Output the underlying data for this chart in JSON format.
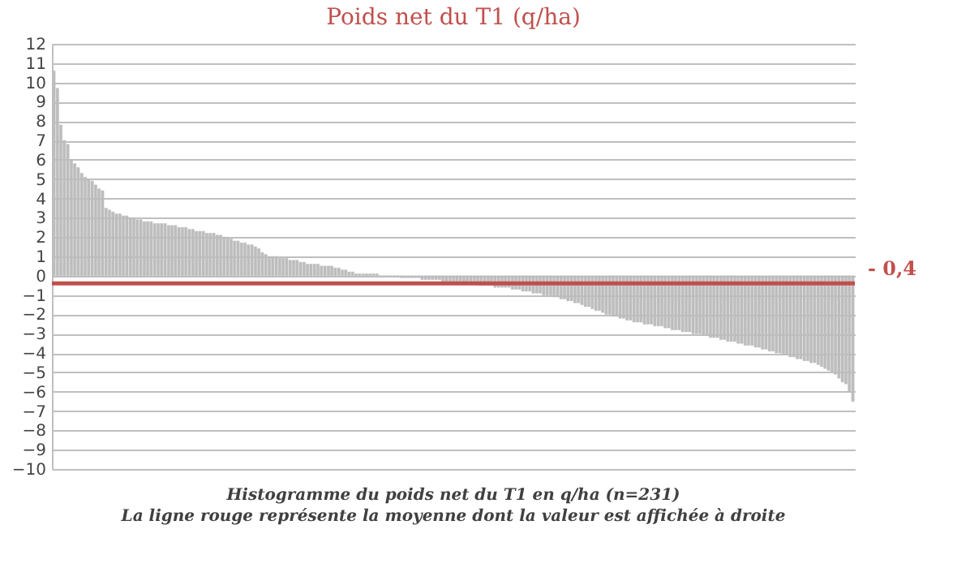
{
  "chart_data": {
    "type": "bar",
    "title": "Poids net du T1 (q/ha)",
    "categories": [
      null,
      null,
      null,
      null,
      null,
      null,
      null,
      null,
      null,
      null,
      null,
      null,
      null,
      null,
      null,
      null,
      null,
      null,
      null,
      null,
      null,
      null,
      null,
      null,
      null,
      null,
      null,
      null,
      null,
      null,
      null,
      null,
      null,
      null,
      null,
      null,
      null,
      null,
      null,
      null,
      null,
      null,
      null,
      null,
      null,
      null,
      null,
      null,
      null,
      null,
      null,
      null,
      null,
      null,
      null,
      null,
      null,
      null,
      null,
      null,
      null,
      null,
      null,
      null,
      null,
      null,
      null,
      null,
      null,
      null,
      null,
      null,
      null,
      null,
      null,
      null,
      null,
      null,
      null,
      null,
      null,
      null,
      null,
      null,
      null,
      null,
      null,
      null,
      null,
      null,
      null,
      null,
      null,
      null,
      null,
      null,
      null,
      null,
      null,
      null,
      null,
      null,
      null,
      null,
      null,
      null,
      null,
      null,
      null,
      null,
      null,
      null,
      null,
      null,
      null,
      null,
      null,
      null,
      null,
      null,
      null,
      null,
      null,
      null,
      null,
      null,
      null,
      null,
      null,
      null,
      null,
      null,
      null,
      null,
      null,
      null,
      null,
      null,
      null,
      null,
      null,
      null,
      null,
      null,
      null,
      null,
      null,
      null,
      null,
      null,
      null,
      null,
      null,
      null,
      null,
      null,
      null,
      null,
      null,
      null,
      null,
      null,
      null,
      null,
      null,
      null,
      null,
      null,
      null,
      null,
      null,
      null,
      null,
      null,
      null,
      null,
      null,
      null,
      null,
      null,
      null,
      null,
      null,
      null,
      null,
      null,
      null,
      null,
      null,
      null,
      null,
      null,
      null,
      null,
      null,
      null,
      null,
      null,
      null,
      null,
      null,
      null,
      null,
      null,
      null,
      null,
      null,
      null,
      null,
      null,
      null,
      null,
      null,
      null,
      null,
      null,
      null,
      null,
      null,
      null,
      null,
      null,
      null,
      null,
      null,
      null,
      null,
      null,
      null,
      null,
      null
    ],
    "values": [
      10.6,
      9.7,
      7.8,
      7.0,
      6.8,
      6.0,
      5.8,
      5.6,
      5.3,
      5.1,
      5.0,
      4.9,
      4.7,
      4.5,
      4.4,
      3.5,
      3.4,
      3.3,
      3.2,
      3.2,
      3.1,
      3.1,
      3.0,
      3.0,
      2.9,
      2.9,
      2.8,
      2.8,
      2.8,
      2.7,
      2.7,
      2.7,
      2.7,
      2.6,
      2.6,
      2.6,
      2.5,
      2.5,
      2.5,
      2.4,
      2.4,
      2.3,
      2.3,
      2.3,
      2.2,
      2.2,
      2.2,
      2.1,
      2.1,
      2.0,
      2.0,
      1.9,
      1.8,
      1.8,
      1.7,
      1.7,
      1.6,
      1.6,
      1.5,
      1.4,
      1.2,
      1.1,
      1.0,
      1.0,
      1.0,
      0.9,
      0.9,
      0.9,
      0.8,
      0.8,
      0.8,
      0.7,
      0.7,
      0.6,
      0.6,
      0.6,
      0.6,
      0.5,
      0.5,
      0.5,
      0.5,
      0.4,
      0.4,
      0.3,
      0.3,
      0.2,
      0.2,
      0.1,
      0.1,
      0.1,
      0.1,
      0.1,
      0.1,
      0.1,
      0.0,
      0.0,
      0.0,
      0.0,
      0.0,
      0.0,
      -0.1,
      -0.1,
      -0.1,
      -0.1,
      -0.1,
      -0.1,
      -0.2,
      -0.2,
      -0.2,
      -0.2,
      -0.2,
      -0.2,
      -0.3,
      -0.3,
      -0.3,
      -0.3,
      -0.3,
      -0.4,
      -0.4,
      -0.4,
      -0.4,
      -0.4,
      -0.5,
      -0.5,
      -0.5,
      -0.5,
      -0.5,
      -0.6,
      -0.6,
      -0.6,
      -0.6,
      -0.6,
      -0.7,
      -0.7,
      -0.7,
      -0.8,
      -0.8,
      -0.8,
      -0.9,
      -0.9,
      -0.9,
      -1.0,
      -1.0,
      -1.0,
      -1.1,
      -1.1,
      -1.2,
      -1.2,
      -1.3,
      -1.3,
      -1.4,
      -1.4,
      -1.5,
      -1.6,
      -1.6,
      -1.7,
      -1.8,
      -1.8,
      -1.9,
      -2.0,
      -2.0,
      -2.1,
      -2.1,
      -2.2,
      -2.2,
      -2.3,
      -2.3,
      -2.4,
      -2.4,
      -2.4,
      -2.5,
      -2.5,
      -2.5,
      -2.6,
      -2.6,
      -2.6,
      -2.7,
      -2.7,
      -2.8,
      -2.8,
      -2.8,
      -2.9,
      -2.9,
      -2.9,
      -3.0,
      -3.0,
      -3.0,
      -3.1,
      -3.1,
      -3.2,
      -3.2,
      -3.2,
      -3.3,
      -3.3,
      -3.4,
      -3.4,
      -3.4,
      -3.5,
      -3.5,
      -3.6,
      -3.6,
      -3.6,
      -3.7,
      -3.7,
      -3.8,
      -3.8,
      -3.9,
      -3.9,
      -4.0,
      -4.0,
      -4.1,
      -4.1,
      -4.2,
      -4.2,
      -4.3,
      -4.3,
      -4.4,
      -4.4,
      -4.5,
      -4.5,
      -4.6,
      -4.7,
      -4.8,
      -4.9,
      -5.0,
      -5.1,
      -5.3,
      -5.5,
      -5.6,
      -6.0,
      -6.5
    ],
    "color": "#bdbdbd",
    "ylim": [
      -10,
      12
    ],
    "yticks": [
      -10,
      -9,
      -8,
      -7,
      -6,
      -5,
      -4,
      -3,
      -2,
      -1,
      0,
      1,
      2,
      3,
      4,
      5,
      6,
      7,
      8,
      9,
      10,
      11,
      12
    ],
    "grid": "y",
    "tick_labels": "y",
    "ref_lines": [
      {
        "axis": "y",
        "value": -0.4,
        "label": "- 0,4",
        "color": "#c0504d"
      }
    ],
    "annotations": [
      "Histogramme du poids net du T1 en q/ha (n=231)",
      "La ligne rouge représente la moyenne dont la valeur est affichée à droite"
    ]
  }
}
